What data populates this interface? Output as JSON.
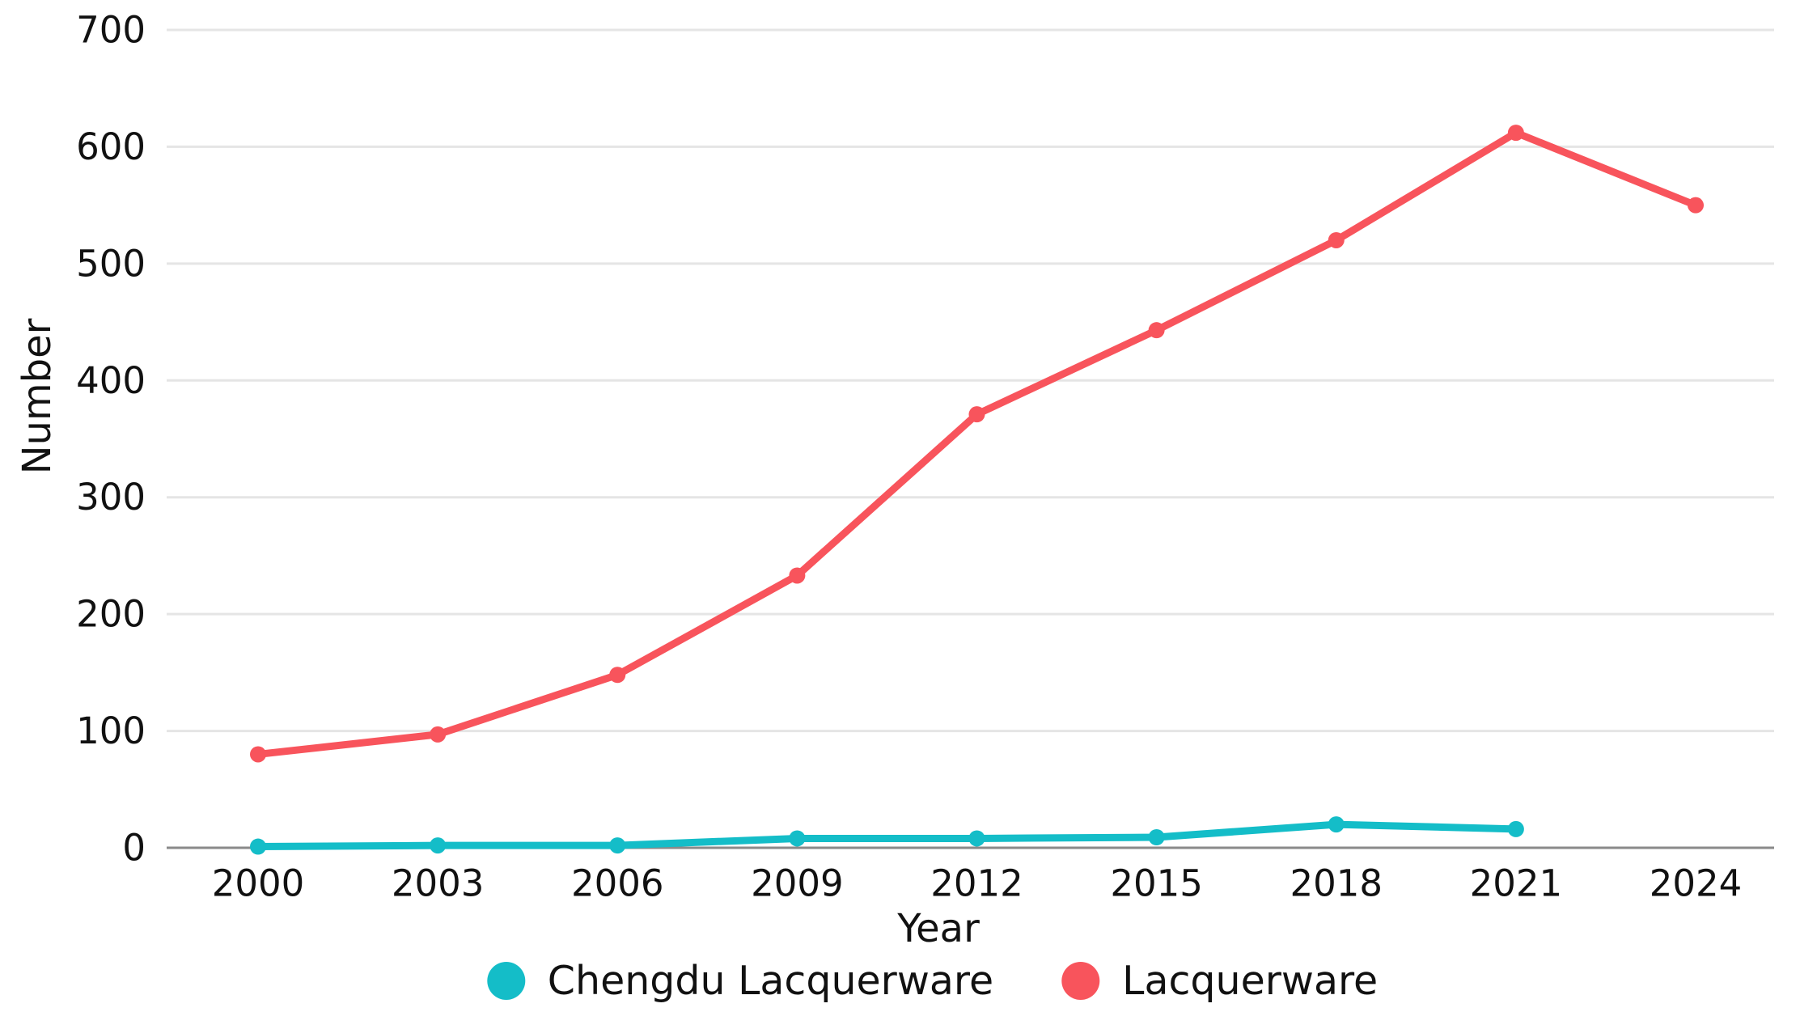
{
  "page": {
    "background": "#ffffff"
  },
  "chart_data": {
    "type": "line",
    "title": "",
    "xlabel": "Year",
    "ylabel": "Number",
    "categories": [
      "2000",
      "2003",
      "2006",
      "2009",
      "2012",
      "2015",
      "2018",
      "2021",
      "2024"
    ],
    "y_ticks": [
      0,
      100,
      200,
      300,
      400,
      500,
      600,
      700
    ],
    "ylim": [
      0,
      700
    ],
    "grid": true,
    "legend_position": "bottom",
    "series": [
      {
        "name": "Chengdu Lacquerware",
        "color": "#14bdc8",
        "values": [
          1,
          2,
          2,
          8,
          8,
          9,
          20,
          16,
          null
        ]
      },
      {
        "name": "Lacquerware",
        "color": "#f8545c",
        "values": [
          80,
          97,
          148,
          233,
          371,
          443,
          520,
          612,
          550
        ]
      }
    ],
    "axis_color": "#8a8a8a",
    "gridline_color": "#e5e5e5",
    "text_color": "#111111"
  }
}
